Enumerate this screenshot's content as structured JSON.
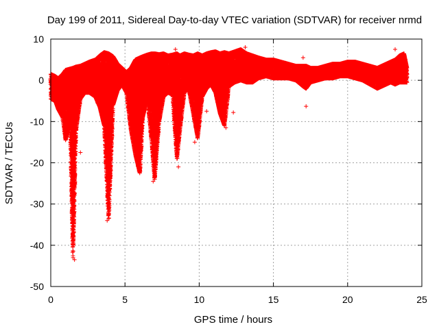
{
  "chart_data": {
    "type": "scatter",
    "title": "Day 199 of 2011, Sidereal Day-to-day VTEC variation (SDTVAR) for receiver nrmd",
    "xlabel": "GPS time / hours",
    "ylabel": "SDTVAR / TECUs",
    "xlim": [
      0,
      25
    ],
    "ylim": [
      -50,
      10
    ],
    "xticks": [
      0,
      5,
      10,
      15,
      20,
      25
    ],
    "yticks": [
      10,
      0,
      -10,
      -20,
      -30,
      -40,
      -50
    ],
    "grid": true,
    "marker": "+",
    "series": [
      {
        "name": "SDTVAR",
        "color": "#ff0000",
        "envelope": {
          "x": [
            0.0,
            0.3,
            0.5,
            0.8,
            1.0,
            1.3,
            1.5,
            1.7,
            2.0,
            2.3,
            2.6,
            3.0,
            3.3,
            3.6,
            3.9,
            4.2,
            4.5,
            4.8,
            5.1,
            5.4,
            5.7,
            6.0,
            6.2,
            6.5,
            6.8,
            7.0,
            7.3,
            7.6,
            7.9,
            8.2,
            8.5,
            8.7,
            9.0,
            9.3,
            9.6,
            9.9,
            10.2,
            10.5,
            10.8,
            11.1,
            11.4,
            11.7,
            12.0,
            12.4,
            12.8,
            13.2,
            13.6,
            14.0,
            14.5,
            15.0,
            15.5,
            16.0,
            16.5,
            17.0,
            17.2,
            17.5,
            18.0,
            18.5,
            19.0,
            19.5,
            20.0,
            20.5,
            21.0,
            21.5,
            22.0,
            22.3,
            22.6,
            22.9,
            23.2,
            23.5,
            23.8,
            24.0
          ],
          "upper": [
            1.5,
            1.0,
            0.5,
            1.5,
            2.5,
            2.8,
            3.0,
            3.3,
            3.5,
            4.0,
            4.5,
            5.0,
            6.0,
            6.8,
            6.5,
            5.8,
            4.0,
            3.0,
            2.0,
            3.0,
            5.0,
            5.5,
            5.8,
            6.2,
            6.5,
            6.5,
            6.3,
            6.5,
            6.0,
            6.2,
            6.5,
            6.0,
            6.5,
            6.2,
            6.0,
            6.5,
            6.0,
            6.5,
            6.8,
            7.0,
            6.5,
            6.8,
            6.5,
            7.0,
            7.5,
            6.5,
            6.0,
            5.5,
            5.0,
            5.0,
            4.5,
            4.0,
            3.5,
            3.5,
            3.5,
            3.0,
            3.0,
            3.5,
            4.0,
            4.0,
            4.5,
            4.5,
            4.0,
            3.5,
            3.0,
            3.5,
            4.0,
            4.5,
            5.0,
            6.0,
            6.5,
            3.0
          ],
          "lower": [
            -4.5,
            -5.0,
            -7.0,
            -9.0,
            -14.5,
            -10.0,
            -43.0,
            -12.0,
            -4.5,
            -3.0,
            -3.0,
            -4.0,
            -6.5,
            -11.0,
            -33.5,
            -6.0,
            -2.5,
            -1.0,
            -3.0,
            -12.0,
            -18.0,
            -22.5,
            -9.0,
            -4.0,
            -15.0,
            -24.0,
            -10.0,
            -4.0,
            -3.0,
            -3.5,
            -19.0,
            -12.0,
            -3.0,
            -2.0,
            -8.0,
            -14.0,
            -4.0,
            -2.0,
            -1.0,
            -3.0,
            -8.0,
            -11.0,
            -1.5,
            -0.5,
            0.0,
            -0.5,
            -0.5,
            0.5,
            1.0,
            0.5,
            0.5,
            0.5,
            0.0,
            -1.5,
            -2.0,
            -0.5,
            0.0,
            0.5,
            0.5,
            1.0,
            1.0,
            0.5,
            0.0,
            -1.0,
            -2.0,
            -1.5,
            -1.0,
            -0.5,
            -1.0,
            -0.5,
            -0.5,
            -0.5
          ]
        },
        "outliers": [
          {
            "x": 1.6,
            "y": -43.5
          },
          {
            "x": 3.8,
            "y": -34.0
          },
          {
            "x": 6.9,
            "y": -24.5
          },
          {
            "x": 8.6,
            "y": -21.0
          },
          {
            "x": 9.7,
            "y": -15.0
          },
          {
            "x": 10.5,
            "y": -7.5
          },
          {
            "x": 11.8,
            "y": -11.5
          },
          {
            "x": 12.3,
            "y": -7.8
          },
          {
            "x": 13.1,
            "y": 8.0
          },
          {
            "x": 17.0,
            "y": 5.5
          },
          {
            "x": 17.2,
            "y": -6.3
          },
          {
            "x": 23.2,
            "y": 7.5
          },
          {
            "x": 8.4,
            "y": 7.5
          },
          {
            "x": 5.9,
            "y": -16.5
          },
          {
            "x": 2.0,
            "y": -17.5
          }
        ]
      }
    ]
  }
}
